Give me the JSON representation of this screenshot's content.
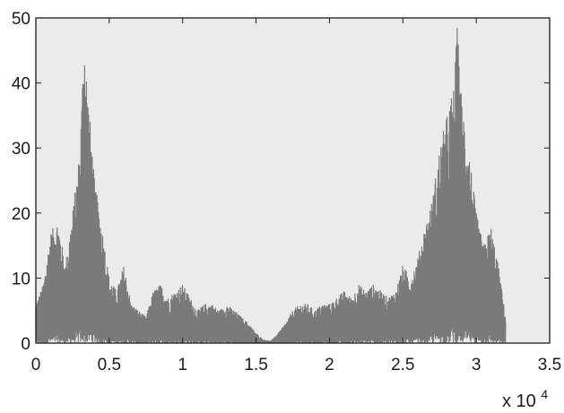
{
  "chart_data": {
    "type": "line",
    "title": "",
    "xlabel": "",
    "ylabel": "",
    "xlim": [
      0,
      3.5
    ],
    "ylim": [
      0,
      50
    ],
    "x_ticks": [
      0,
      0.5,
      1,
      1.5,
      2,
      2.5,
      3,
      3.5
    ],
    "x_tick_labels": [
      "0",
      "0.5",
      "1",
      "1.5",
      "2",
      "2.5",
      "3",
      "3.5"
    ],
    "y_ticks": [
      0,
      10,
      20,
      30,
      40,
      50
    ],
    "y_tick_labels": [
      "0",
      "10",
      "20",
      "30",
      "40",
      "50"
    ],
    "x_multiplier_base": "x 10",
    "x_multiplier_exponent": "4",
    "grid": false,
    "legend": "none",
    "colors": {
      "plot_background": "#ebebeb",
      "series": "#7a7a7a",
      "axis": "#1a1a1a"
    },
    "series": [
      {
        "x": [
          0,
          0.05,
          0.1,
          0.15,
          0.2,
          0.25,
          0.3,
          0.33,
          0.35,
          0.4,
          0.45,
          0.5,
          0.55,
          0.6,
          0.65,
          0.7,
          0.75,
          0.8,
          0.85,
          0.9,
          0.95,
          1.0,
          1.05,
          1.1,
          1.15,
          1.2,
          1.25,
          1.3,
          1.35,
          1.4,
          1.45,
          1.5,
          1.55,
          1.6,
          1.65,
          1.7,
          1.75,
          1.8,
          1.85,
          1.9,
          1.95,
          2.0,
          2.05,
          2.1,
          2.15,
          2.2,
          2.25,
          2.3,
          2.35,
          2.4,
          2.45,
          2.5,
          2.55,
          2.6,
          2.65,
          2.7,
          2.75,
          2.8,
          2.85,
          2.87,
          2.9,
          2.95,
          3.0,
          3.05,
          3.1,
          3.15,
          3.2
        ],
        "y": [
          6,
          9,
          17,
          19,
          12,
          20,
          30,
          49,
          40,
          25,
          18,
          10,
          8,
          12,
          6,
          5,
          4,
          8,
          9,
          7,
          8,
          9,
          7,
          5,
          6,
          6,
          5,
          6,
          5,
          4,
          3,
          1.5,
          0.5,
          0.3,
          1.5,
          3,
          5,
          6,
          6,
          5,
          6,
          6,
          7,
          8,
          7,
          9,
          8,
          9,
          8,
          7,
          8,
          12,
          10,
          13,
          18,
          22,
          30,
          35,
          40,
          49,
          38,
          30,
          20,
          15,
          18,
          12,
          4
        ]
      }
    ]
  }
}
